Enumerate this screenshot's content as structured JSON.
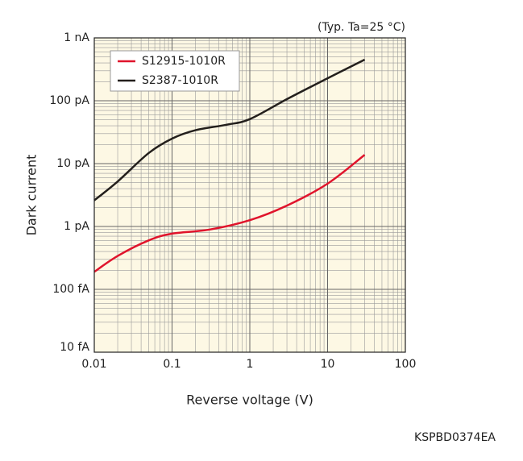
{
  "chart_data": {
    "type": "line",
    "annotation": "(Typ. Ta=25 °C)",
    "figure_code": "KSPBD0374EA",
    "x_label": "Reverse voltage (V)",
    "y_label": "Dark current",
    "xscale": "log",
    "yscale": "log",
    "grid": true,
    "legend": "upper left",
    "xlim": [
      0.01,
      100
    ],
    "xticks": [
      0.01,
      0.1,
      1,
      10,
      100
    ],
    "ylim": [
      0.01,
      1000
    ],
    "yticks": [
      {
        "value": 0.01,
        "label": "10 fA"
      },
      {
        "value": 0.1,
        "label": "100 fA"
      },
      {
        "value": 1,
        "label": "1 pA"
      },
      {
        "value": 10,
        "label": "10 pA"
      },
      {
        "value": 100,
        "label": "100 pA"
      },
      {
        "value": 1000,
        "label": "1 nA"
      }
    ],
    "series": [
      {
        "name": "S12915-1010R",
        "color": "#e0142c",
        "x": [
          0.01,
          0.02,
          0.05,
          0.1,
          0.3,
          1,
          3,
          10,
          30
        ],
        "values": [
          0.19,
          0.34,
          0.6,
          0.77,
          0.89,
          1.26,
          2.15,
          4.8,
          13.8
        ]
      },
      {
        "name": "S2387-1010R",
        "color": "#231f1c",
        "x": [
          0.01,
          0.02,
          0.05,
          0.1,
          0.2,
          0.5,
          1,
          3,
          10,
          30
        ],
        "values": [
          2.6,
          5.2,
          14.7,
          25,
          34,
          41.5,
          51,
          106,
          228,
          450
        ]
      }
    ]
  }
}
